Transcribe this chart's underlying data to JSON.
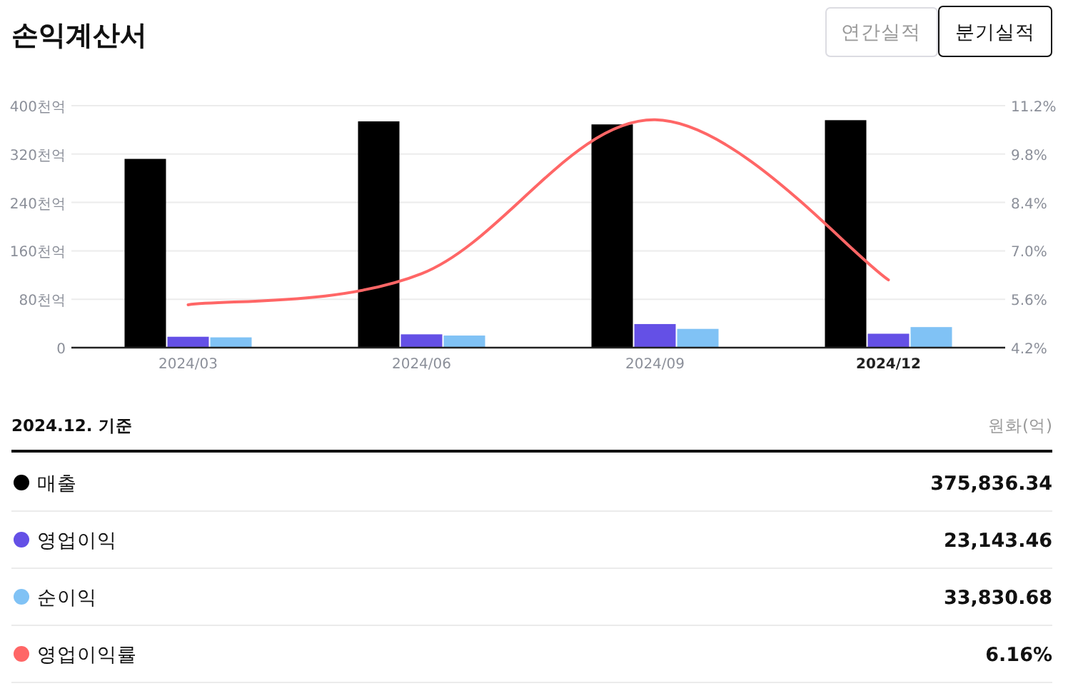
{
  "chart_data": {
    "type": "bar",
    "title": "손익계산서",
    "annotations": [
      "연간실적",
      "분기실적",
      "2024.12. 기준",
      "원화(억)",
      "375,836.34",
      "23,143.46",
      "33,830.68",
      "6.16%"
    ],
    "categories": [
      "2024/03",
      "2024/06",
      "2024/09",
      "2024/12"
    ],
    "series": [
      {
        "name": "매출",
        "color": "#000000",
        "values": [
          312,
          374,
          369,
          376
        ]
      },
      {
        "name": "영업이익",
        "color": "#6450e6",
        "values": [
          18,
          22,
          39,
          23
        ]
      },
      {
        "name": "순이익",
        "color": "#80c2f5",
        "values": [
          17,
          20,
          31,
          34
        ]
      },
      {
        "name": "영업이익률",
        "color": "#ff6666",
        "type": "line",
        "axis": "y2",
        "marker": "none",
        "values": [
          5.44,
          6.34,
          10.79,
          6.16
        ]
      }
    ],
    "ylim": [
      0,
      400
    ],
    "yticks": [
      0,
      {
        "value": 80,
        "label": "80천억"
      },
      {
        "value": 160,
        "label": "160천억"
      },
      {
        "value": 240,
        "label": "240천억"
      },
      {
        "value": 320,
        "label": "320천억"
      },
      {
        "value": 400,
        "label": "400천억"
      }
    ],
    "y2lim": [
      4.2,
      11.2
    ],
    "y2ticks": [
      {
        "value": 4.2,
        "label": "4.2%"
      },
      {
        "value": 5.6,
        "label": "5.6%"
      },
      {
        "value": 7.0,
        "label": "7.0%"
      },
      {
        "value": 8.4,
        "label": "8.4%"
      },
      {
        "value": 9.8,
        "label": "9.8%"
      },
      {
        "value": 11.2,
        "label": "11.2%"
      }
    ],
    "grid": "y",
    "legend": "bottom"
  }
}
